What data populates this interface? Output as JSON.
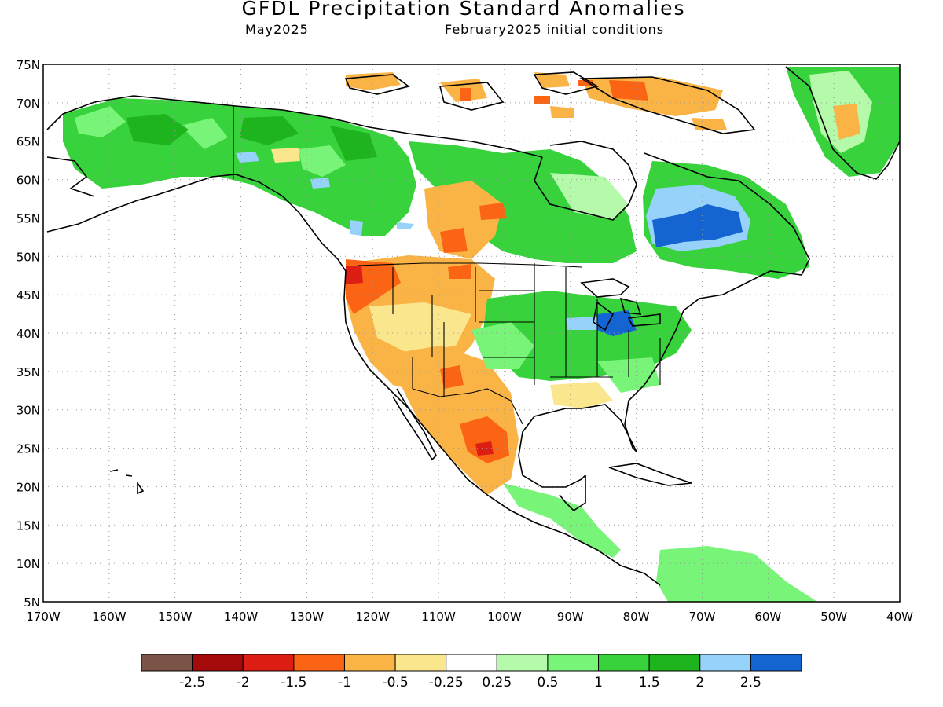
{
  "header": {
    "title": "GFDL Precipitation Standard Anomalies",
    "valid_month": "May2025",
    "init_conditions": "February2025 initial conditions"
  },
  "map": {
    "lon_ticks": [
      "170W",
      "160W",
      "150W",
      "140W",
      "130W",
      "120W",
      "110W",
      "100W",
      "90W",
      "80W",
      "70W",
      "60W",
      "50W",
      "40W"
    ],
    "lat_ticks": [
      "75N",
      "70N",
      "65N",
      "60N",
      "55N",
      "50N",
      "45N",
      "40N",
      "35N",
      "30N",
      "25N",
      "20N",
      "15N",
      "10N",
      "5N"
    ],
    "lon_range": [
      -170,
      -40
    ],
    "lat_range": [
      5,
      75
    ],
    "grid": "dotted",
    "anomaly_regions": [
      {
        "name": "alaska-yukon",
        "level": "1"
      },
      {
        "name": "canada-northwest",
        "level": "1.5"
      },
      {
        "name": "hudson-bay-west",
        "level": "1"
      },
      {
        "name": "quebec-labrador",
        "level": "2.5"
      },
      {
        "name": "great-lakes-ohio",
        "level": "2.5"
      },
      {
        "name": "central-plains",
        "level": "1"
      },
      {
        "name": "pacific-northwest",
        "level": "-1.5"
      },
      {
        "name": "great-basin",
        "level": "-0.5"
      },
      {
        "name": "southwest-us",
        "level": "-1"
      },
      {
        "name": "northern-mexico",
        "level": "-1.5"
      },
      {
        "name": "arctic-islands",
        "level": "-1"
      },
      {
        "name": "greenland",
        "level": "1.5"
      },
      {
        "name": "central-america",
        "level": "1"
      },
      {
        "name": "southeast-us",
        "level": "-0.5"
      }
    ]
  },
  "legend": {
    "colors": [
      "#7b5448",
      "#a50a0a",
      "#dc1e14",
      "#fa6414",
      "#fab446",
      "#fae68c",
      "#ffffff",
      "#b4faaa",
      "#78f578",
      "#37d23c",
      "#1eb41e",
      "#96d2fa",
      "#1464d2"
    ],
    "labels": [
      "-2.5",
      "-2",
      "-1.5",
      "-1",
      "-0.5",
      "-0.25",
      "0.25",
      "0.5",
      "1",
      "1.5",
      "2",
      "2.5"
    ]
  }
}
